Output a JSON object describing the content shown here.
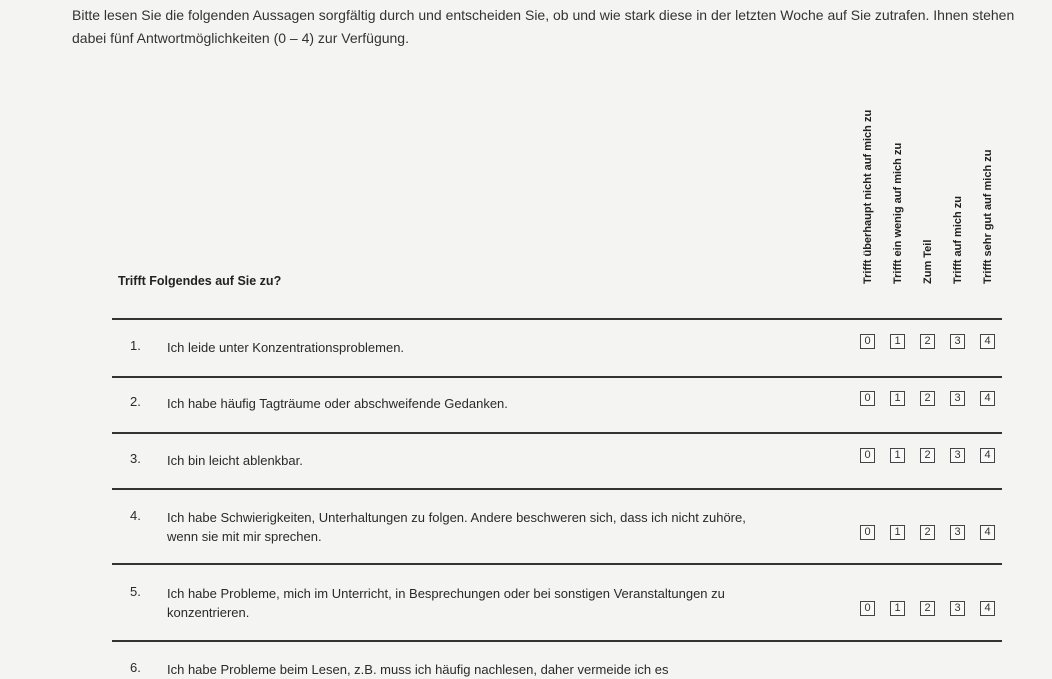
{
  "intro": "Bitte lesen Sie die folgenden Aussagen sorgfältig durch und entscheiden Sie, ob und wie stark diese in der letzten Woche auf Sie zutrafen. Ihnen stehen dabei fünf Antwortmöglichkeiten (0 – 4) zur Verfügung.",
  "question_header": "Trifft Folgendes auf Sie zu?",
  "columns": [
    "Trifft überhaupt nicht auf mich zu",
    "Trifft ein wenig auf mich zu",
    "Zum Teil",
    "Trifft auf mich zu",
    "Trifft sehr gut auf mich zu"
  ],
  "options": [
    "0",
    "1",
    "2",
    "3",
    "4"
  ],
  "items": [
    {
      "num": "1.",
      "text": "Ich leide unter Konzentrationsproblemen."
    },
    {
      "num": "2.",
      "text": "Ich habe häufig Tagträume oder abschweifende Gedanken."
    },
    {
      "num": "3.",
      "text": "Ich bin leicht ablenkbar."
    },
    {
      "num": "4.",
      "text": "Ich habe Schwierigkeiten, Unterhaltungen zu folgen. Andere beschweren sich, dass ich nicht zuhöre, wenn sie mit mir sprechen."
    },
    {
      "num": "5.",
      "text": "Ich habe Probleme, mich im Unterricht, in Besprechungen oder bei sonstigen Veranstaltungen zu konzentrieren."
    },
    {
      "num": "6.",
      "text": "Ich habe Probleme beim Lesen, z.B. muss ich häufig nachlesen, daher vermeide ich es"
    }
  ]
}
